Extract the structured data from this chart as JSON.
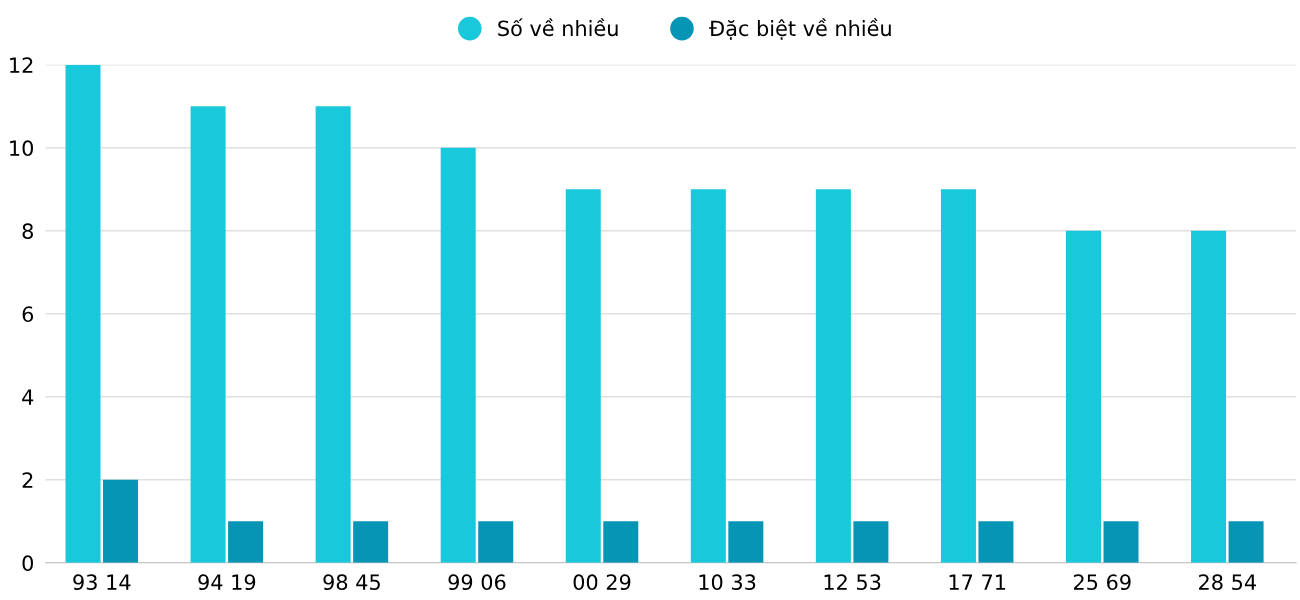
{
  "chart_data": {
    "type": "bar",
    "categories": [
      "93 14",
      "94 19",
      "98 45",
      "99 06",
      "00 29",
      "10 33",
      "12 53",
      "17 71",
      "25 69",
      "28 54"
    ],
    "series": [
      {
        "name": "Số về nhiều",
        "color": "#1ac8db",
        "values": [
          12,
          11,
          11,
          10,
          9,
          9,
          9,
          9,
          8,
          8
        ]
      },
      {
        "name": "Đặc biệt về nhiều",
        "color": "#0695b5",
        "values": [
          2,
          1,
          1,
          1,
          1,
          1,
          1,
          1,
          1,
          1
        ]
      }
    ],
    "ylim": [
      0,
      12
    ],
    "yticks": [
      0,
      2,
      4,
      6,
      8,
      10,
      12
    ],
    "grid": "y",
    "legend": "top",
    "marker": "circle"
  }
}
